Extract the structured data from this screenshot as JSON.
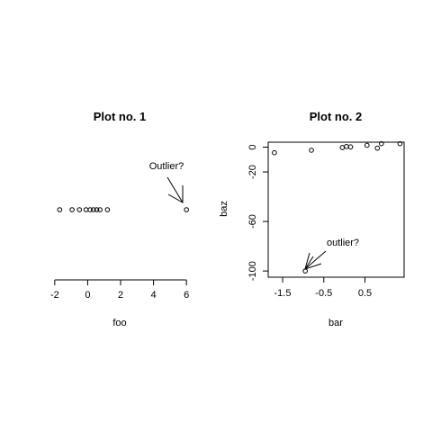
{
  "chart_data": [
    {
      "type": "scatter",
      "title": "Plot no. 1",
      "xlabel": "foo",
      "ylabel": "",
      "xlim": [
        -2.1,
        6.1
      ],
      "ylim": [
        -1,
        1
      ],
      "x_ticks": [
        -2,
        0,
        2,
        4,
        6
      ],
      "points": [
        {
          "x": -1.7,
          "y": 0
        },
        {
          "x": -0.95,
          "y": 0
        },
        {
          "x": -0.5,
          "y": 0
        },
        {
          "x": -0.1,
          "y": 0
        },
        {
          "x": 0.15,
          "y": 0
        },
        {
          "x": 0.35,
          "y": 0
        },
        {
          "x": 0.55,
          "y": 0
        },
        {
          "x": 0.75,
          "y": 0
        },
        {
          "x": 1.2,
          "y": 0
        },
        {
          "x": 6.0,
          "y": 0
        }
      ],
      "annotation": {
        "text": "Outlier?",
        "x": 6.0,
        "y": 0
      }
    },
    {
      "type": "scatter",
      "title": "Plot no. 2",
      "xlabel": "bar",
      "ylabel": "baz",
      "xlim": [
        -1.85,
        1.45
      ],
      "ylim": [
        -105,
        4
      ],
      "x_ticks": [
        -1.5,
        -0.5,
        0.5
      ],
      "y_ticks": [
        0,
        -20,
        -60,
        -100
      ],
      "points": [
        {
          "x": -1.7,
          "y": -4.5
        },
        {
          "x": -0.95,
          "y": -100
        },
        {
          "x": -0.8,
          "y": -2.5
        },
        {
          "x": -0.05,
          "y": -0.3
        },
        {
          "x": 0.05,
          "y": 0.5
        },
        {
          "x": 0.15,
          "y": 0.2
        },
        {
          "x": 0.55,
          "y": 1.5
        },
        {
          "x": 0.8,
          "y": -0.8
        },
        {
          "x": 0.9,
          "y": 2.8
        },
        {
          "x": 1.35,
          "y": 2.8
        }
      ],
      "annotation": {
        "text": "outlier?",
        "x": -0.95,
        "y": -100
      }
    }
  ]
}
